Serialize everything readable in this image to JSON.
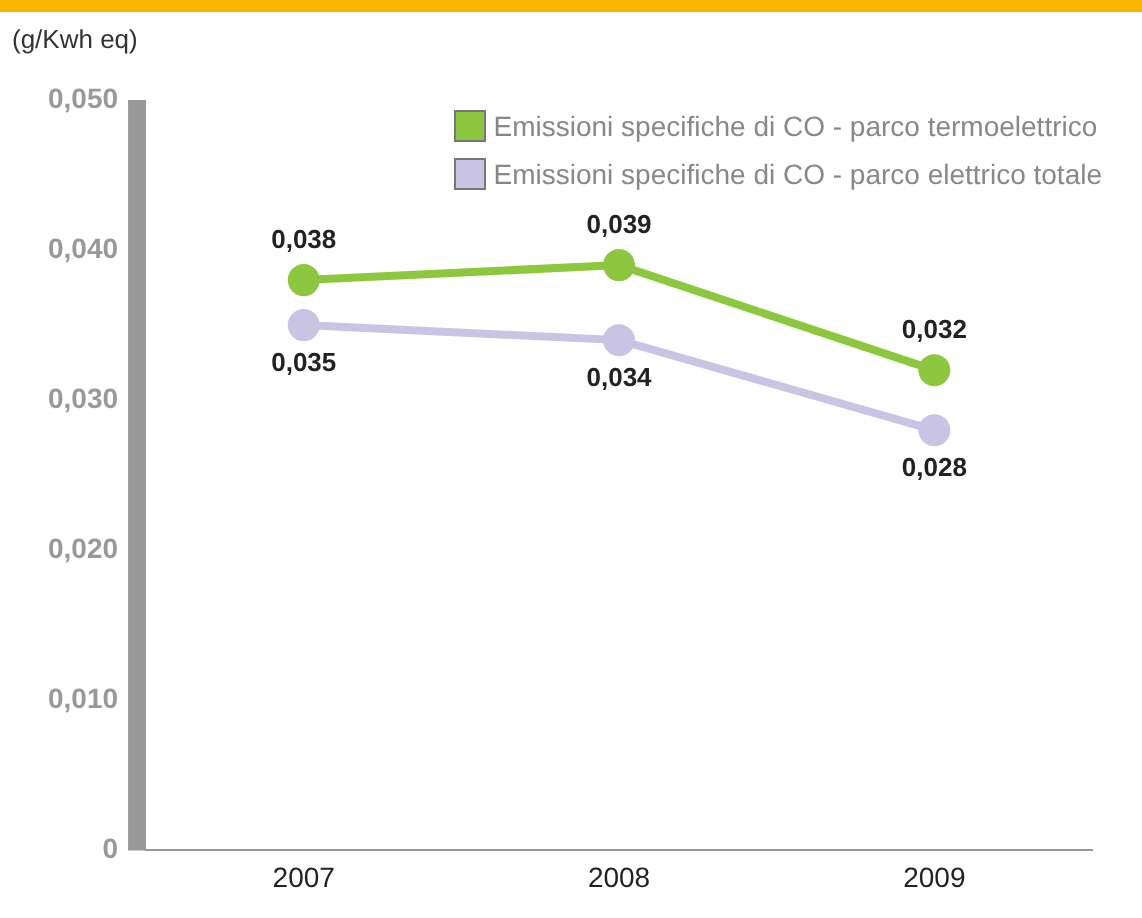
{
  "chart_data": {
    "type": "line",
    "ylabel": "(g/Kwh eq)",
    "categories": [
      "2007",
      "2008",
      "2009"
    ],
    "series": [
      {
        "name": "Emissioni specifiche di CO - parco termoelettrico",
        "color": "#8dc63f",
        "values": [
          0.038,
          0.039,
          0.032
        ],
        "value_labels": [
          "0,038",
          "0,039",
          "0,032"
        ]
      },
      {
        "name": "Emissioni specifiche di CO - parco elettrico totale",
        "color": "#c9c4e4",
        "values": [
          0.035,
          0.034,
          0.028
        ],
        "value_labels": [
          "0,035",
          "0,034",
          "0,028"
        ]
      }
    ],
    "ylim": [
      0,
      0.05
    ],
    "yticks": [
      0,
      {
        "value": 0.01,
        "label": "0,010"
      },
      {
        "value": 0.02,
        "label": "0,020"
      },
      {
        "value": 0.03,
        "label": "0,030"
      },
      {
        "value": 0.04,
        "label": "0,040"
      },
      {
        "value": 0.05,
        "label": "0,050"
      }
    ],
    "grid": false,
    "legend": "top right",
    "marker": "circle",
    "line_style": "solid"
  }
}
